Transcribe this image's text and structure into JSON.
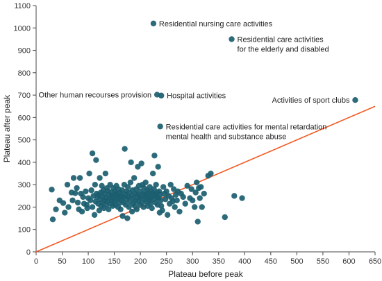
{
  "chart_data": {
    "type": "scatter",
    "title": "",
    "xlabel": "Plateau before peak",
    "ylabel": "Plateau after peak",
    "xlim": [
      0,
      650
    ],
    "ylim": [
      0,
      1100
    ],
    "x_ticks": [
      "0",
      "50",
      "100",
      "150",
      "200",
      "250",
      "300",
      "350",
      "400",
      "450",
      "500",
      "550",
      "600",
      "650"
    ],
    "y_ticks": [
      "0",
      "100",
      "200",
      "300",
      "400",
      "500",
      "600",
      "700",
      "800",
      "900",
      "1000",
      "1100"
    ],
    "grid": false,
    "point_color": "#1b5e70",
    "reference_line": {
      "color": "#f15a22",
      "from": [
        0,
        0
      ],
      "to": [
        650,
        650
      ]
    },
    "annotations": [
      {
        "lines": [
          "Residential nursing care activities"
        ],
        "x": 225,
        "y": 1020,
        "side": "right"
      },
      {
        "lines": [
          "Residential care activities",
          "for the elderly and disabled"
        ],
        "x": 375,
        "y": 950,
        "side": "right"
      },
      {
        "lines": [
          "Hospital activities"
        ],
        "x": 240,
        "y": 698,
        "side": "right"
      },
      {
        "lines": [
          "Other human recourses provision"
        ],
        "x": 232,
        "y": 702,
        "side": "left"
      },
      {
        "lines": [
          "Activities of sport clubs"
        ],
        "x": 612,
        "y": 678,
        "side": "left"
      },
      {
        "lines": [
          "Residential care activities for mental retardation",
          "mental health and substance abuse"
        ],
        "x": 238,
        "y": 560,
        "side": "right"
      }
    ],
    "points": [
      [
        225,
        1020
      ],
      [
        375,
        950
      ],
      [
        232,
        702
      ],
      [
        240,
        698
      ],
      [
        612,
        678
      ],
      [
        238,
        560
      ],
      [
        30,
        278
      ],
      [
        32,
        145
      ],
      [
        38,
        190
      ],
      [
        45,
        230
      ],
      [
        52,
        218
      ],
      [
        55,
        175
      ],
      [
        60,
        300
      ],
      [
        62,
        200
      ],
      [
        68,
        265
      ],
      [
        70,
        230
      ],
      [
        72,
        330
      ],
      [
        75,
        262
      ],
      [
        78,
        285
      ],
      [
        80,
        220
      ],
      [
        82,
        190
      ],
      [
        84,
        330
      ],
      [
        86,
        260
      ],
      [
        88,
        180
      ],
      [
        90,
        245
      ],
      [
        92,
        215
      ],
      [
        95,
        270
      ],
      [
        97,
        210
      ],
      [
        98,
        195
      ],
      [
        100,
        240
      ],
      [
        102,
        350
      ],
      [
        104,
        230
      ],
      [
        106,
        275
      ],
      [
        108,
        440
      ],
      [
        108,
        200
      ],
      [
        110,
        250
      ],
      [
        112,
        165
      ],
      [
        113,
        300
      ],
      [
        114,
        225
      ],
      [
        115,
        410
      ],
      [
        116,
        260
      ],
      [
        118,
        245
      ],
      [
        119,
        215
      ],
      [
        120,
        255
      ],
      [
        121,
        185
      ],
      [
        122,
        330
      ],
      [
        123,
        235
      ],
      [
        124,
        265
      ],
      [
        125,
        205
      ],
      [
        126,
        295
      ],
      [
        127,
        220
      ],
      [
        128,
        245
      ],
      [
        129,
        275
      ],
      [
        130,
        195
      ],
      [
        131,
        260
      ],
      [
        132,
        228
      ],
      [
        133,
        350
      ],
      [
        134,
        242
      ],
      [
        135,
        210
      ],
      [
        136,
        285
      ],
      [
        137,
        225
      ],
      [
        138,
        270
      ],
      [
        139,
        190
      ],
      [
        140,
        255
      ],
      [
        141,
        240
      ],
      [
        142,
        300
      ],
      [
        143,
        215
      ],
      [
        144,
        265
      ],
      [
        145,
        230
      ],
      [
        146,
        250
      ],
      [
        147,
        205
      ],
      [
        148,
        285
      ],
      [
        149,
        245
      ],
      [
        150,
        225
      ],
      [
        151,
        270
      ],
      [
        152,
        210
      ],
      [
        153,
        260
      ],
      [
        154,
        295
      ],
      [
        155,
        235
      ],
      [
        156,
        255
      ],
      [
        157,
        200
      ],
      [
        158,
        280
      ],
      [
        159,
        240
      ],
      [
        160,
        218
      ],
      [
        161,
        265
      ],
      [
        162,
        190
      ],
      [
        163,
        250
      ],
      [
        164,
        230
      ],
      [
        165,
        275
      ],
      [
        166,
        160
      ],
      [
        167,
        245
      ],
      [
        168,
        220
      ],
      [
        169,
        300
      ],
      [
        170,
        460
      ],
      [
        171,
        255
      ],
      [
        172,
        210
      ],
      [
        173,
        270
      ],
      [
        174,
        235
      ],
      [
        175,
        150
      ],
      [
        176,
        290
      ],
      [
        177,
        245
      ],
      [
        178,
        200
      ],
      [
        179,
        265
      ],
      [
        180,
        225
      ],
      [
        181,
        310
      ],
      [
        182,
        400
      ],
      [
        183,
        250
      ],
      [
        184,
        180
      ],
      [
        185,
        275
      ],
      [
        186,
        215
      ],
      [
        187,
        240
      ],
      [
        188,
        330
      ],
      [
        189,
        205
      ],
      [
        190,
        260
      ],
      [
        191,
        230
      ],
      [
        192,
        280
      ],
      [
        193,
        190
      ],
      [
        194,
        255
      ],
      [
        195,
        380
      ],
      [
        196,
        225
      ],
      [
        197,
        295
      ],
      [
        198,
        245
      ],
      [
        199,
        210
      ],
      [
        200,
        270
      ],
      [
        201,
        240
      ],
      [
        202,
        395
      ],
      [
        203,
        220
      ],
      [
        204,
        300
      ],
      [
        205,
        260
      ],
      [
        206,
        200
      ],
      [
        207,
        285
      ],
      [
        208,
        235
      ],
      [
        209,
        255
      ],
      [
        210,
        310
      ],
      [
        211,
        225
      ],
      [
        212,
        245
      ],
      [
        213,
        275
      ],
      [
        214,
        205
      ],
      [
        215,
        265
      ],
      [
        216,
        230
      ],
      [
        217,
        250
      ],
      [
        218,
        290
      ],
      [
        219,
        215
      ],
      [
        220,
        240
      ],
      [
        221,
        270
      ],
      [
        222,
        195
      ],
      [
        223,
        260
      ],
      [
        224,
        350
      ],
      [
        225,
        235
      ],
      [
        226,
        280
      ],
      [
        227,
        430
      ],
      [
        228,
        255
      ],
      [
        229,
        220
      ],
      [
        230,
        300
      ],
      [
        231,
        245
      ],
      [
        232,
        265
      ],
      [
        233,
        210
      ],
      [
        234,
        380
      ],
      [
        235,
        240
      ],
      [
        236,
        270
      ],
      [
        237,
        175
      ],
      [
        238,
        255
      ],
      [
        239,
        230
      ],
      [
        240,
        205
      ],
      [
        242,
        185
      ],
      [
        244,
        290
      ],
      [
        246,
        260
      ],
      [
        248,
        235
      ],
      [
        250,
        270
      ],
      [
        252,
        165
      ],
      [
        254,
        250
      ],
      [
        256,
        215
      ],
      [
        258,
        300
      ],
      [
        260,
        240
      ],
      [
        262,
        225
      ],
      [
        264,
        280
      ],
      [
        266,
        200
      ],
      [
        268,
        255
      ],
      [
        270,
        230
      ],
      [
        272,
        270
      ],
      [
        275,
        180
      ],
      [
        278,
        260
      ],
      [
        282,
        245
      ],
      [
        286,
        215
      ],
      [
        290,
        295
      ],
      [
        295,
        240
      ],
      [
        298,
        280
      ],
      [
        300,
        230
      ],
      [
        304,
        200
      ],
      [
        306,
        265
      ],
      [
        308,
        310
      ],
      [
        310,
        135
      ],
      [
        312,
        285
      ],
      [
        314,
        240
      ],
      [
        316,
        290
      ],
      [
        318,
        200
      ],
      [
        322,
        260
      ],
      [
        330,
        340
      ],
      [
        335,
        350
      ],
      [
        362,
        155
      ],
      [
        380,
        250
      ],
      [
        395,
        240
      ]
    ]
  }
}
